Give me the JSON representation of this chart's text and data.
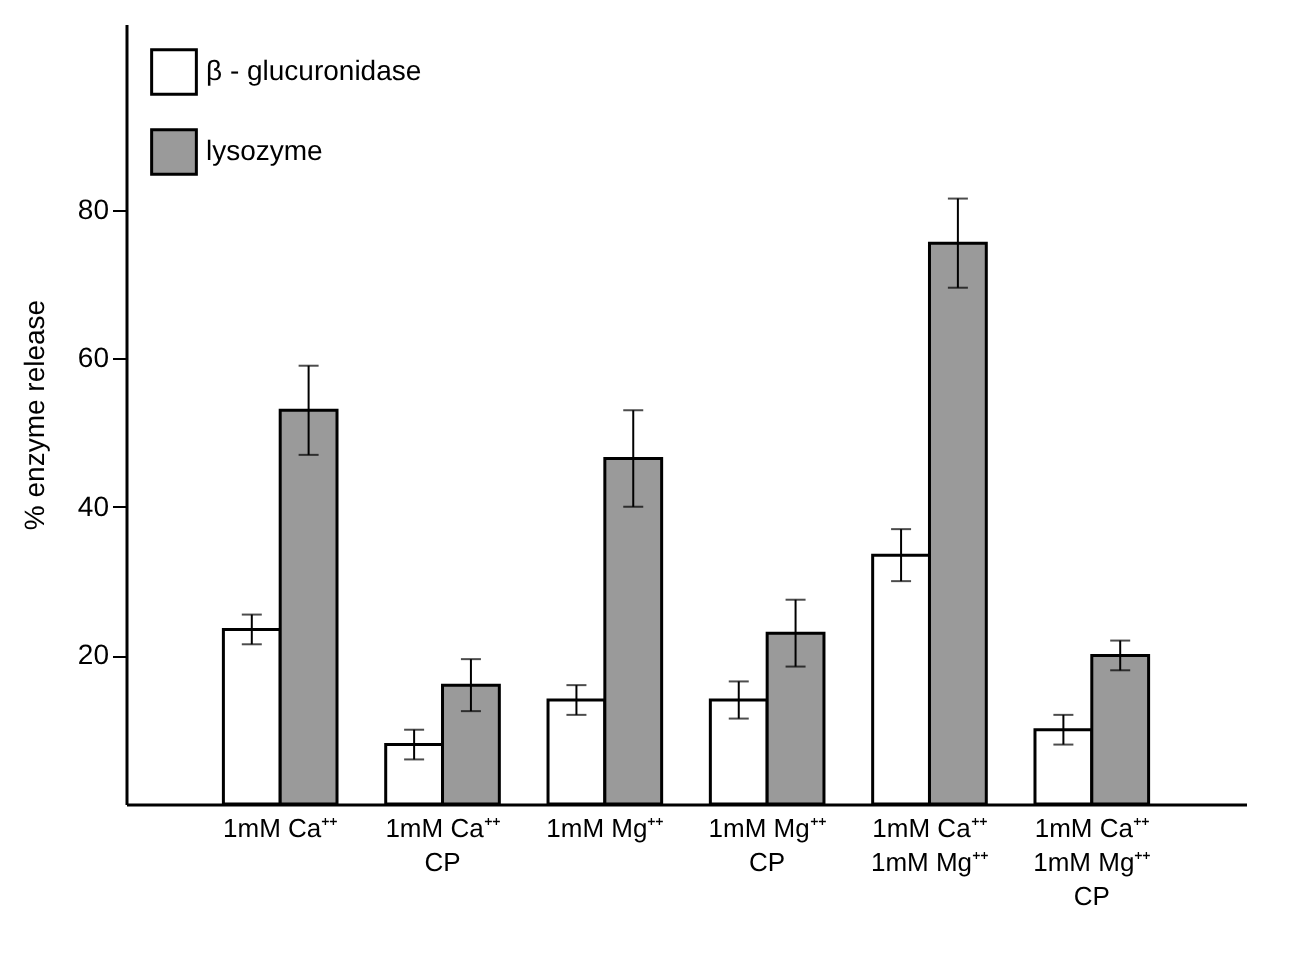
{
  "chart_data": {
    "type": "bar",
    "ylabel": "% enzyme release",
    "categories": [
      "1mM Ca⁺⁺",
      "1mM Ca⁺⁺\nCP",
      "1mM Mg⁺⁺",
      "1mM Mg⁺⁺\nCP",
      "1mM Ca⁺⁺\n1mM Mg⁺⁺",
      "1mM Ca⁺⁺\n1mM Mg⁺⁺\nCP"
    ],
    "series": [
      {
        "name": "β - glucuronidase",
        "color": "#ffffff",
        "values": [
          23.5,
          8,
          14,
          14,
          33.5,
          10
        ],
        "errors": [
          2,
          2,
          2,
          2.5,
          3.5,
          2
        ]
      },
      {
        "name": "lysozyme",
        "color": "#9a9a9a",
        "values": [
          53,
          16,
          46.5,
          23,
          75.5,
          20
        ],
        "errors": [
          6,
          3.5,
          6.5,
          4.5,
          6,
          2
        ]
      }
    ],
    "ylim": [
      0,
      105
    ],
    "yticks": [
      20,
      40,
      60,
      80
    ],
    "grid": false,
    "legend": "top left"
  }
}
